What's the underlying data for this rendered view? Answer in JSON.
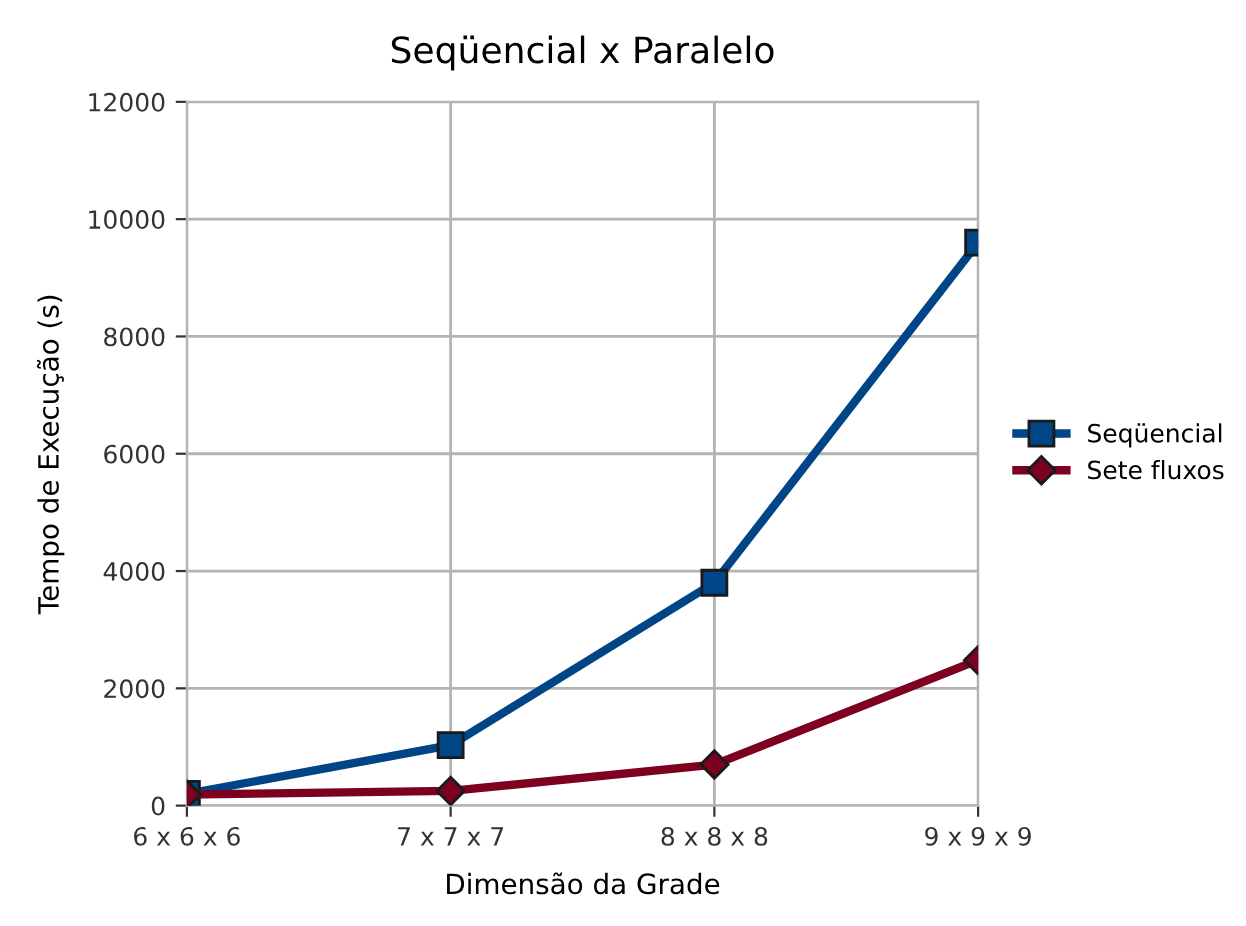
{
  "chart_data": {
    "type": "line",
    "title": "Seqüencial x Paralelo",
    "xlabel": "Dimensão da Grade",
    "ylabel": "Tempo de Execução (s)",
    "categories": [
      "6 x 6 x 6",
      "7 x 7 x 7",
      "8 x 8 x 8",
      "9 x 9 x 9"
    ],
    "series": [
      {
        "name": "Seqüencial",
        "color": "#004586",
        "marker": "square",
        "values": [
          200,
          1030,
          3800,
          9600
        ]
      },
      {
        "name": "Sete fluxos",
        "color": "#7e0021",
        "marker": "diamond",
        "values": [
          190,
          250,
          700,
          2480
        ]
      }
    ],
    "ylim": [
      0,
      12000
    ],
    "yticks": [
      0,
      2000,
      4000,
      6000,
      8000,
      10000,
      12000
    ],
    "grid": true,
    "legend": "right"
  }
}
